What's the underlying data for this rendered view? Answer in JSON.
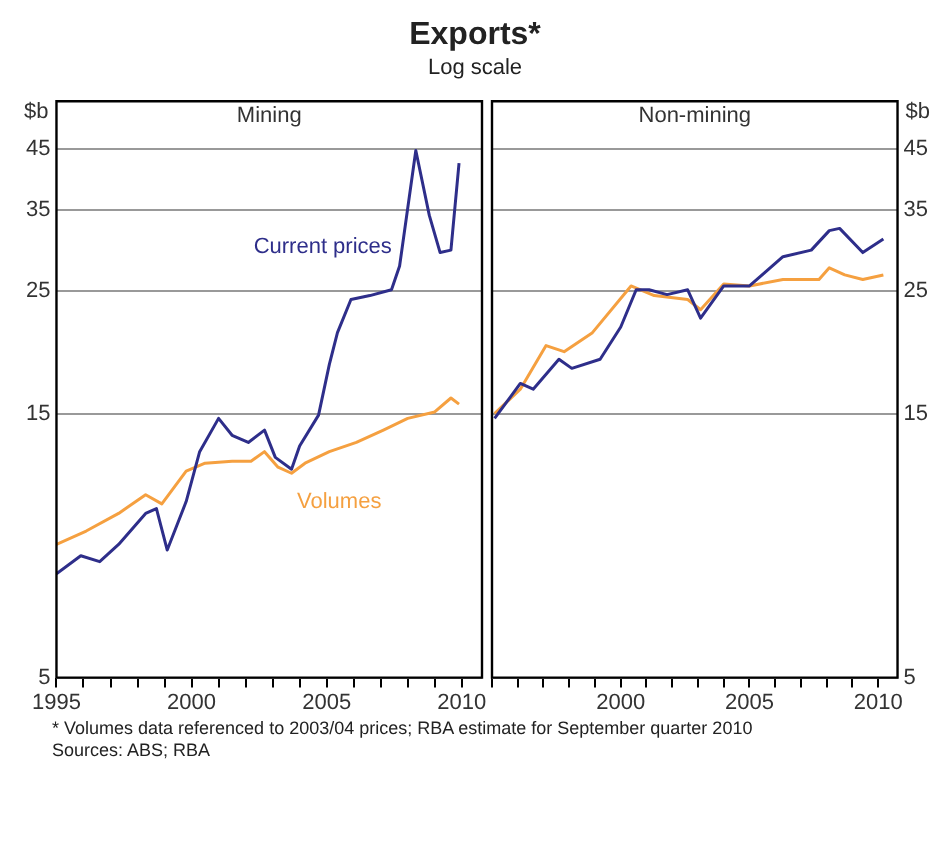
{
  "chart_data": [
    {
      "type": "line",
      "title": "Mining",
      "ylabel": "$b",
      "log": "y",
      "grid": "y",
      "xlim": [
        1995,
        2010.75
      ],
      "xticks": [
        1995,
        {
          "value": 1996,
          "label": null
        },
        {
          "value": 1997,
          "label": null
        },
        {
          "value": 1998,
          "label": null
        },
        {
          "value": 1999,
          "label": null
        },
        2000,
        {
          "value": 2001,
          "label": null
        },
        {
          "value": 2002,
          "label": null
        },
        {
          "value": 2003,
          "label": null
        },
        {
          "value": 2004,
          "label": null
        },
        2005,
        {
          "value": 2006,
          "label": null
        },
        {
          "value": 2007,
          "label": null
        },
        {
          "value": 2008,
          "label": null
        },
        {
          "value": 2009,
          "label": null
        },
        2010
      ],
      "ylim": [
        5,
        55
      ],
      "yticks": [
        5,
        15,
        25,
        35,
        45
      ],
      "annotations": [
        "Exports*",
        "Log scale"
      ],
      "series": [
        {
          "name": "Current prices",
          "color": "#2e2e8a",
          "x": [
            1995,
            1995.9,
            1996.6,
            1997.3,
            1998.3,
            1998.7,
            1999.1,
            1999.8,
            2000.3,
            2001,
            2001.5,
            2002.1,
            2002.7,
            2003.1,
            2003.7,
            2004,
            2004.7,
            2005.1,
            2005.4,
            2005.9,
            2006.6,
            2007.4,
            2007.7,
            2008.3,
            2008.8,
            2009.2,
            2009.6,
            2009.9
          ],
          "values": [
            7.7,
            8.3,
            8.1,
            8.7,
            9.9,
            10.1,
            8.5,
            10.4,
            12.8,
            14.7,
            13.7,
            13.3,
            14,
            12.5,
            11.9,
            13.1,
            14.9,
            18.4,
            21,
            24.1,
            24.5,
            25.1,
            27.7,
            44.8,
            34.2,
            29.3,
            29.6,
            42.5
          ]
        },
        {
          "name": "Volumes",
          "color": "#f5a040",
          "x": [
            1995,
            1996.1,
            1997.3,
            1998.3,
            1998.9,
            1999.8,
            2000.5,
            2001.5,
            2002.2,
            2002.7,
            2003.2,
            2003.7,
            2004.2,
            2005.1,
            2006.1,
            2007.1,
            2008,
            2009,
            2009.6,
            2009.9
          ],
          "values": [
            8.7,
            9.2,
            9.9,
            10.7,
            10.3,
            11.8,
            12.2,
            12.3,
            12.3,
            12.8,
            12,
            11.7,
            12.2,
            12.8,
            13.3,
            14,
            14.7,
            15.1,
            16,
            15.6
          ]
        }
      ]
    },
    {
      "type": "line",
      "title": "Non-mining",
      "ylabel": "$b",
      "log": "y",
      "grid": "y",
      "xlim": [
        1995,
        2010.75
      ],
      "xticks": [
        {
          "value": 1995,
          "label": null
        },
        {
          "value": 1996,
          "label": null
        },
        {
          "value": 1997,
          "label": null
        },
        {
          "value": 1998,
          "label": null
        },
        {
          "value": 1999,
          "label": null
        },
        2000,
        {
          "value": 2001,
          "label": null
        },
        {
          "value": 2002,
          "label": null
        },
        {
          "value": 2003,
          "label": null
        },
        {
          "value": 2004,
          "label": null
        },
        2005,
        {
          "value": 2006,
          "label": null
        },
        {
          "value": 2007,
          "label": null
        },
        {
          "value": 2008,
          "label": null
        },
        {
          "value": 2009,
          "label": null
        },
        2010
      ],
      "ylim": [
        5,
        55
      ],
      "yticks": [
        5,
        15,
        25,
        35,
        45
      ],
      "annotations": [
        "*    Volumes data referenced to 2003/04 prices; RBA estimate for September quarter 2010",
        "Sources: ABS; RBA"
      ],
      "series": [
        {
          "color": "#2e2e8a",
          "x": [
            1995.1,
            1996.1,
            1996.6,
            1997.6,
            1998.1,
            1999.2,
            2000,
            2000.6,
            2001.1,
            2001.8,
            2002.6,
            2003.1,
            2004,
            2005,
            2006.3,
            2007.4,
            2008.1,
            2008.5,
            2009.4,
            2010.2
          ],
          "values": [
            14.7,
            17,
            16.6,
            18.8,
            18.1,
            18.8,
            21.5,
            25.1,
            25.1,
            24.6,
            25.1,
            22.3,
            25.5,
            25.5,
            28.8,
            29.6,
            32.1,
            32.4,
            29.3,
            31
          ]
        },
        {
          "color": "#f5a040",
          "x": [
            1995.1,
            1996.1,
            1997.1,
            1997.8,
            1998.9,
            2000.4,
            2001.3,
            2002.6,
            2003.1,
            2004,
            2005,
            2006.3,
            2007.7,
            2008.1,
            2008.7,
            2009.4,
            2010.2
          ],
          "values": [
            15,
            16.6,
            19.9,
            19.4,
            21,
            25.5,
            24.5,
            24.1,
            23.1,
            25.7,
            25.5,
            26.2,
            26.2,
            27.5,
            26.7,
            26.2,
            26.7
          ]
        }
      ]
    }
  ]
}
